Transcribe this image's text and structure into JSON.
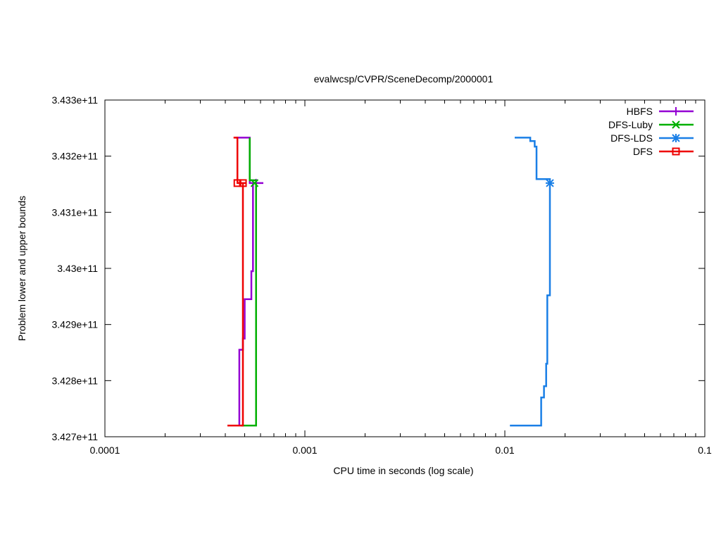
{
  "chart_data": {
    "type": "line",
    "title": "evalwcsp/CVPR/SceneDecomp/2000001",
    "xlabel": "CPU time in seconds (log scale)",
    "ylabel": "Problem lower and upper bounds",
    "xscale": "log",
    "xlim": [
      0.0001,
      0.1
    ],
    "ylim": [
      342700000000,
      343300000000
    ],
    "x_ticks": [
      {
        "value": 0.0001,
        "label": "0.0001"
      },
      {
        "value": 0.001,
        "label": "0.001"
      },
      {
        "value": 0.01,
        "label": "0.01"
      },
      {
        "value": 0.1,
        "label": "0.1"
      }
    ],
    "y_ticks": [
      {
        "value": 342700000000,
        "label": "3.427e+11"
      },
      {
        "value": 342800000000,
        "label": "3.428e+11"
      },
      {
        "value": 342900000000,
        "label": "3.429e+11"
      },
      {
        "value": 343000000000,
        "label": "3.43e+11"
      },
      {
        "value": 343100000000,
        "label": "3.431e+11"
      },
      {
        "value": 343200000000,
        "label": "3.432e+11"
      },
      {
        "value": 343300000000,
        "label": "3.433e+11"
      }
    ],
    "grid": false,
    "legend_position": "top-right",
    "series": [
      {
        "name": "HBFS",
        "color": "#9400d3",
        "marker": "plus",
        "lower": [
          [
            0.00047,
            342720000000
          ],
          [
            0.00047,
            342855000000
          ],
          [
            0.00049,
            342855000000
          ],
          [
            0.00049,
            342875000000
          ],
          [
            0.0005,
            342875000000
          ],
          [
            0.0005,
            342945000000
          ],
          [
            0.00054,
            342945000000
          ],
          [
            0.00054,
            342995000000
          ],
          [
            0.00055,
            342995000000
          ],
          [
            0.00055,
            343152000000
          ],
          [
            0.00056,
            343152000000
          ]
        ],
        "upper": [
          [
            0.00045,
            343233000000
          ],
          [
            0.00053,
            343233000000
          ],
          [
            0.00053,
            343152000000
          ],
          [
            0.00062,
            343152000000
          ]
        ],
        "marker_points": [
          [
            0.00057,
            343152000000
          ]
        ]
      },
      {
        "name": "DFS-Luby",
        "color": "#00b000",
        "marker": "x",
        "lower": [
          [
            0.00048,
            342720000000
          ],
          [
            0.00057,
            342720000000
          ],
          [
            0.00057,
            343152000000
          ]
        ],
        "upper": [
          [
            0.00053,
            343233000000
          ],
          [
            0.00053,
            343157000000
          ],
          [
            0.00057,
            343157000000
          ]
        ],
        "marker_points": [
          [
            0.00056,
            343152000000
          ]
        ]
      },
      {
        "name": "DFS-LDS",
        "color": "#1a7fe6",
        "marker": "star",
        "lower": [
          [
            0.0106,
            342720000000
          ],
          [
            0.0152,
            342720000000
          ],
          [
            0.0152,
            342770000000
          ],
          [
            0.0157,
            342770000000
          ],
          [
            0.0157,
            342790000000
          ],
          [
            0.0161,
            342790000000
          ],
          [
            0.0161,
            342830000000
          ],
          [
            0.0163,
            342830000000
          ],
          [
            0.0163,
            342952000000
          ],
          [
            0.0168,
            342952000000
          ],
          [
            0.0168,
            343152000000
          ]
        ],
        "upper": [
          [
            0.0112,
            343233000000
          ],
          [
            0.0134,
            343233000000
          ],
          [
            0.0134,
            343227000000
          ],
          [
            0.0141,
            343227000000
          ],
          [
            0.0141,
            343217000000
          ],
          [
            0.0144,
            343217000000
          ],
          [
            0.0144,
            343159000000
          ],
          [
            0.0168,
            343159000000
          ],
          [
            0.0168,
            343152000000
          ]
        ],
        "marker_points": [
          [
            0.0168,
            343152000000
          ]
        ]
      },
      {
        "name": "DFS",
        "color": "#ee0000",
        "marker": "square",
        "lower": [
          [
            0.00041,
            342720000000
          ],
          [
            0.00049,
            342720000000
          ],
          [
            0.00049,
            343152000000
          ]
        ],
        "upper": [
          [
            0.00044,
            343233000000
          ],
          [
            0.00046,
            343233000000
          ],
          [
            0.00046,
            343152000000
          ],
          [
            0.00051,
            343152000000
          ]
        ],
        "marker_points": [
          [
            0.00046,
            343152000000
          ],
          [
            0.00049,
            343152000000
          ]
        ]
      }
    ]
  }
}
